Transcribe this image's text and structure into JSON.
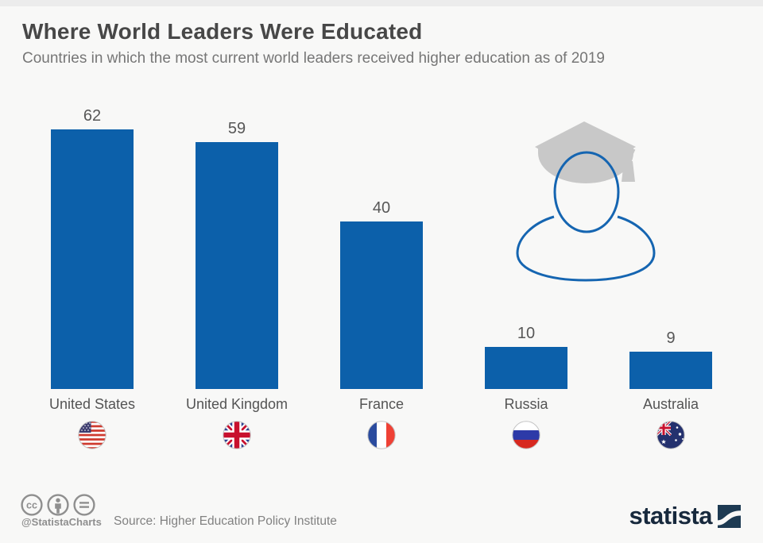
{
  "header": {
    "title": "Where World Leaders Were Educated",
    "subtitle": "Countries in which the most current world leaders received higher education as of 2019"
  },
  "chart_data": {
    "type": "bar",
    "categories": [
      "United States",
      "United Kingdom",
      "France",
      "Russia",
      "Australia"
    ],
    "values": [
      62,
      59,
      40,
      10,
      9
    ],
    "title": "Where World Leaders Were Educated",
    "xlabel": "",
    "ylabel": "",
    "ylim": [
      0,
      62
    ],
    "grid": false,
    "legend": false,
    "bar_color": "#0c60aa",
    "flag_icons": [
      "us-flag-icon",
      "uk-flag-icon",
      "france-flag-icon",
      "russia-flag-icon",
      "australia-flag-icon"
    ]
  },
  "decoration": {
    "graduate_icon": "graduate-cap-person-icon",
    "cap_color": "#c8c8c8",
    "outline_color": "#1565b1"
  },
  "footer": {
    "license_icons": [
      "cc",
      "attribution",
      "equals"
    ],
    "handle": "@StatistaCharts",
    "source": "Source: Higher Education Policy Institute",
    "brand": "statista",
    "brand_color": "#17293d"
  }
}
